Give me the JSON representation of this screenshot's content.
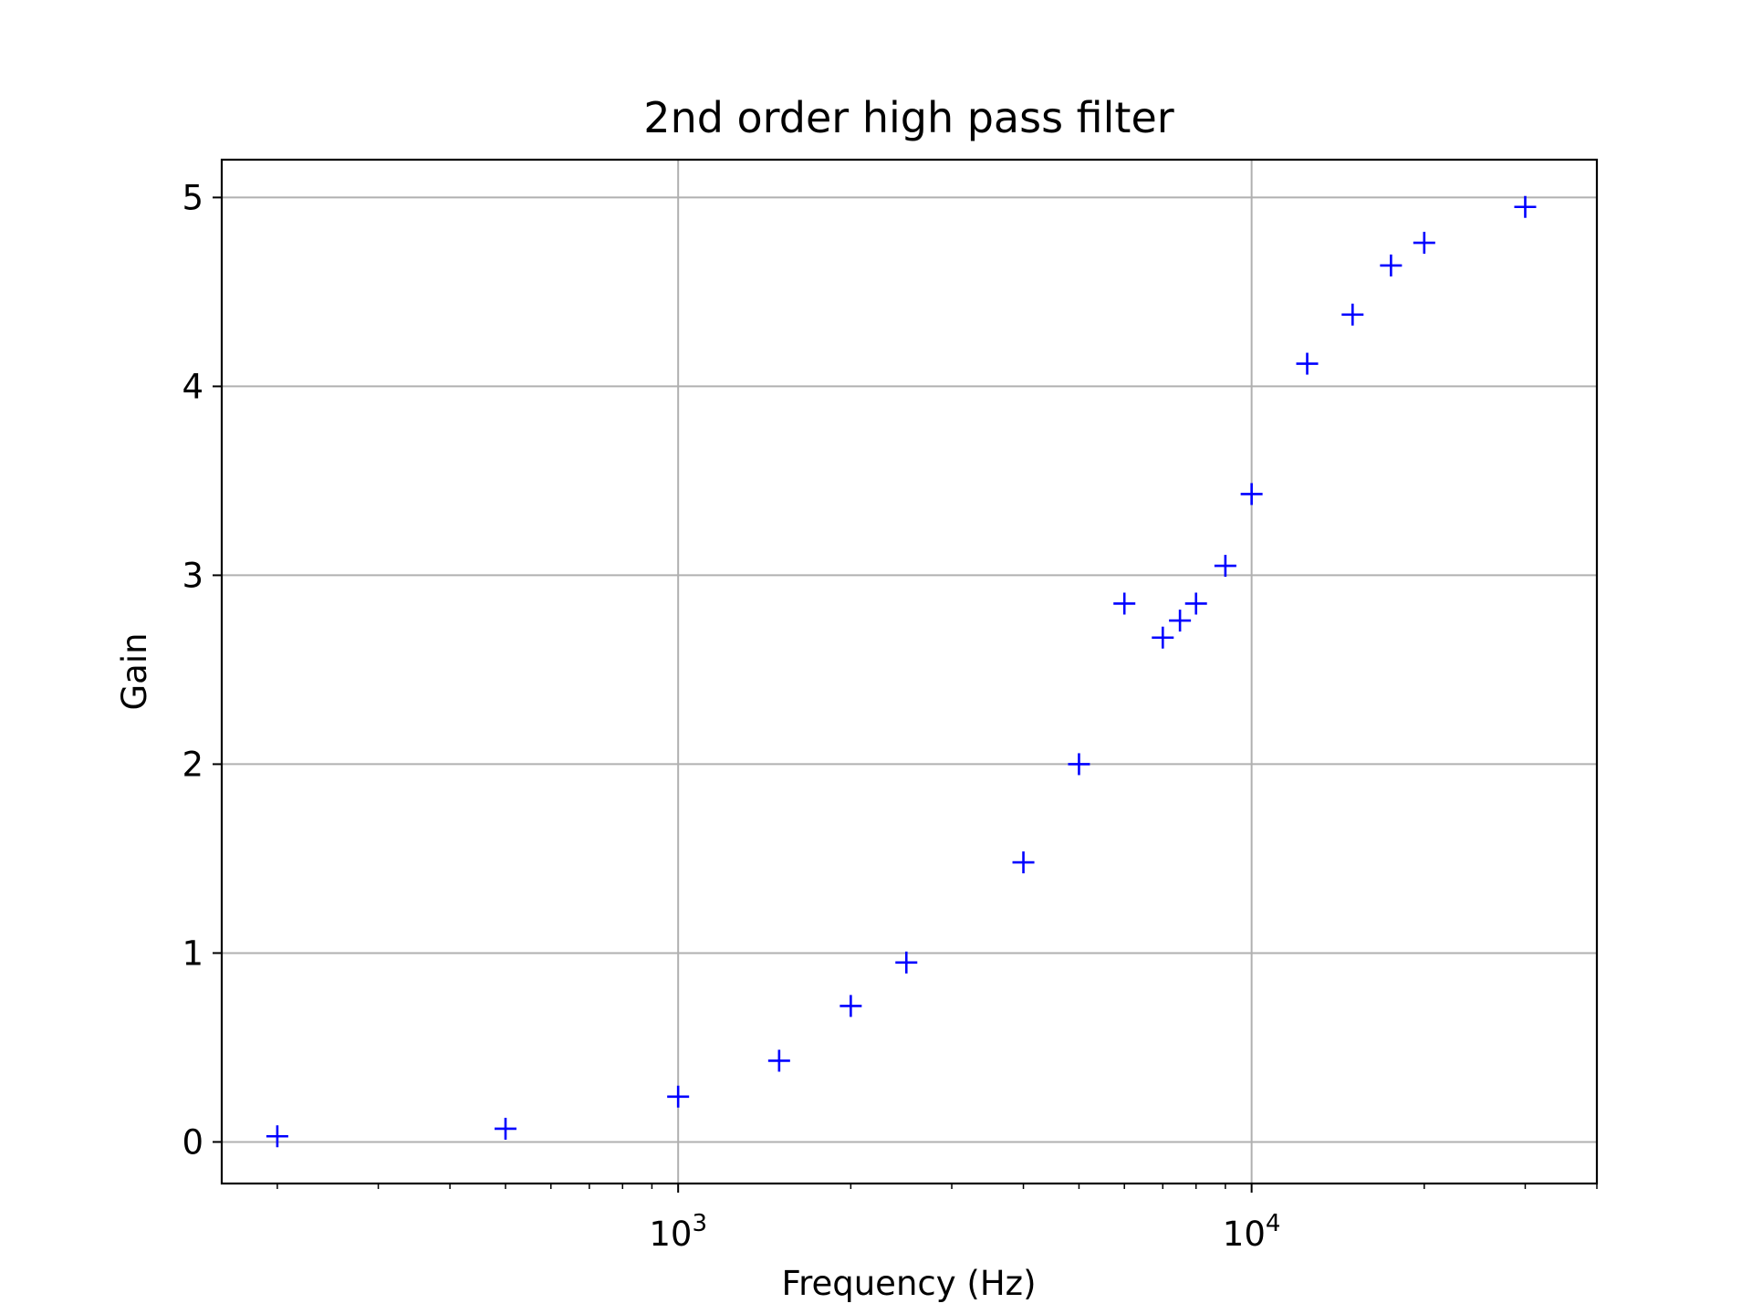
{
  "chart_data": {
    "type": "scatter",
    "title": "2nd order high pass filter",
    "xlabel": "Frequency (Hz)",
    "ylabel": "Gain",
    "x_scale": "log",
    "xlim": [
      160,
      40000
    ],
    "ylim": [
      -0.22,
      5.2
    ],
    "x_major_ticks": [
      {
        "value": 1000,
        "base": "10",
        "exp": "3"
      },
      {
        "value": 10000,
        "base": "10",
        "exp": "4"
      }
    ],
    "y_ticks": [
      0,
      1,
      2,
      3,
      4,
      5
    ],
    "grid": true,
    "marker": "+",
    "marker_color": "#0000ff",
    "series": [
      {
        "x": [
          200,
          500,
          1000,
          1500,
          2000,
          2500,
          4000,
          5000,
          6000,
          7000,
          7500,
          8000,
          9000,
          10000,
          12500,
          15000,
          17500,
          20000,
          30000
        ],
        "y": [
          0.03,
          0.07,
          0.24,
          0.43,
          0.72,
          0.95,
          1.48,
          2.0,
          2.85,
          2.67,
          2.76,
          2.85,
          3.05,
          3.43,
          4.12,
          4.38,
          4.64,
          4.76,
          4.95
        ]
      }
    ]
  }
}
